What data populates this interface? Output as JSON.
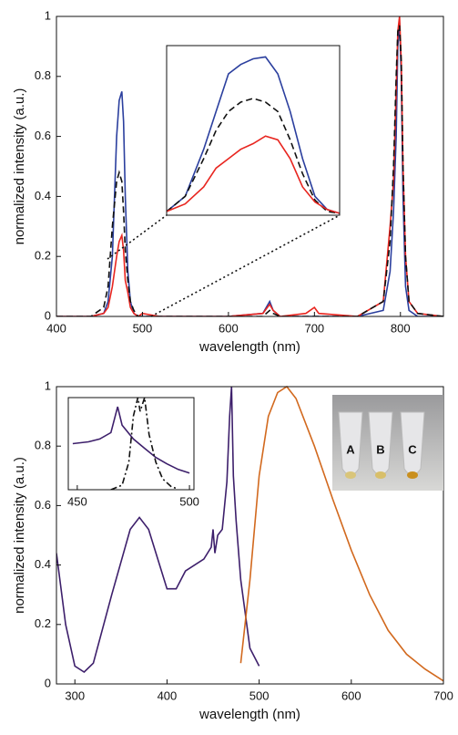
{
  "chart_data": [
    {
      "type": "line",
      "xlabel": "wavelength (nm)",
      "ylabel": "normalized intensity (a.u.)",
      "xlim": [
        400,
        850
      ],
      "ylim": [
        0,
        1
      ],
      "xticks": [
        400,
        500,
        600,
        700,
        800
      ],
      "yticks": [
        0,
        0.2,
        0.4,
        0.6,
        0.8,
        1
      ],
      "grid": false,
      "x": [
        400,
        420,
        440,
        455,
        460,
        465,
        470,
        473,
        476,
        478,
        480,
        483,
        486,
        490,
        495,
        500,
        520,
        550,
        600,
        640,
        648,
        652,
        660,
        690,
        700,
        705,
        750,
        780,
        788,
        792,
        795,
        797,
        799,
        801,
        803,
        806,
        810,
        820,
        850
      ],
      "series": [
        {
          "color": "#2b3f9e",
          "dash": "solid",
          "values": [
            0,
            0,
            0,
            0.01,
            0.05,
            0.2,
            0.6,
            0.72,
            0.75,
            0.65,
            0.4,
            0.15,
            0.05,
            0.01,
            0,
            0,
            0,
            0,
            0,
            0.01,
            0.05,
            0.02,
            0,
            0,
            0,
            0,
            0,
            0.02,
            0.15,
            0.35,
            0.6,
            0.9,
            0.98,
            0.8,
            0.4,
            0.1,
            0.02,
            0,
            0
          ]
        },
        {
          "color": "#e8251f",
          "dash": "solid",
          "values": [
            0,
            0,
            0,
            0.01,
            0.03,
            0.1,
            0.2,
            0.25,
            0.27,
            0.22,
            0.12,
            0.08,
            0.03,
            0.01,
            0,
            0.01,
            0,
            0,
            0,
            0.01,
            0.04,
            0.02,
            0,
            0.01,
            0.03,
            0.01,
            0,
            0.05,
            0.3,
            0.45,
            0.75,
            0.95,
            1.0,
            0.85,
            0.5,
            0.2,
            0.05,
            0.01,
            0
          ]
        },
        {
          "color": "#111111",
          "dash": "dash",
          "values": [
            0,
            0,
            0,
            0.03,
            0.1,
            0.3,
            0.45,
            0.48,
            0.45,
            0.35,
            0.22,
            0.12,
            0.05,
            0.02,
            0,
            0,
            0,
            0,
            0,
            0,
            0.02,
            0.01,
            0,
            0,
            0,
            0,
            0,
            0.05,
            0.25,
            0.5,
            0.8,
            0.95,
            0.97,
            0.85,
            0.5,
            0.2,
            0.05,
            0.01,
            0
          ]
        }
      ]
    },
    {
      "type": "line",
      "xlim": [
        462,
        490
      ],
      "ylim": [
        0,
        0.9
      ],
      "x": [
        462,
        465,
        468,
        470,
        472,
        474,
        476,
        478,
        480,
        482,
        484,
        486,
        488,
        490
      ],
      "series": [
        {
          "color": "#2b3f9e",
          "dash": "solid",
          "values": [
            0.02,
            0.1,
            0.35,
            0.55,
            0.75,
            0.8,
            0.83,
            0.84,
            0.75,
            0.55,
            0.3,
            0.1,
            0.03,
            0.01
          ]
        },
        {
          "color": "#111111",
          "dash": "dash",
          "values": [
            0.02,
            0.1,
            0.3,
            0.45,
            0.55,
            0.6,
            0.62,
            0.6,
            0.55,
            0.4,
            0.22,
            0.08,
            0.02,
            0.01
          ]
        },
        {
          "color": "#e8251f",
          "dash": "solid",
          "values": [
            0.02,
            0.06,
            0.15,
            0.25,
            0.3,
            0.35,
            0.38,
            0.42,
            0.4,
            0.3,
            0.15,
            0.07,
            0.03,
            0.01
          ]
        }
      ]
    },
    {
      "type": "line",
      "xlabel": "wavelength (nm)",
      "ylabel": "normalized intensity (a.u.)",
      "xlim": [
        280,
        700
      ],
      "ylim": [
        0,
        1
      ],
      "xticks": [
        300,
        400,
        500,
        600,
        700
      ],
      "yticks": [
        0,
        0.2,
        0.4,
        0.6,
        0.8,
        1
      ],
      "grid": false,
      "series": [
        {
          "color": "#3d1f6b",
          "dash": "solid",
          "x": [
            280,
            290,
            300,
            310,
            320,
            340,
            360,
            370,
            380,
            400,
            410,
            420,
            440,
            448,
            450,
            452,
            455,
            460,
            465,
            468,
            470,
            472,
            475,
            480,
            490,
            500
          ],
          "values": [
            0.44,
            0.2,
            0.06,
            0.04,
            0.07,
            0.3,
            0.52,
            0.56,
            0.52,
            0.32,
            0.32,
            0.38,
            0.42,
            0.46,
            0.52,
            0.44,
            0.5,
            0.52,
            0.68,
            0.9,
            1.0,
            0.7,
            0.55,
            0.35,
            0.12,
            0.06
          ]
        },
        {
          "color": "#d2691e",
          "dash": "solid",
          "x": [
            480,
            490,
            500,
            510,
            520,
            530,
            540,
            560,
            580,
            600,
            620,
            640,
            660,
            680,
            700
          ],
          "values": [
            0.07,
            0.35,
            0.7,
            0.9,
            0.98,
            1.0,
            0.96,
            0.8,
            0.62,
            0.45,
            0.3,
            0.18,
            0.1,
            0.05,
            0.01
          ]
        }
      ]
    },
    {
      "type": "line",
      "xlim": [
        446,
        502
      ],
      "ylim": [
        0,
        1
      ],
      "xticks": [
        450,
        500
      ],
      "series": [
        {
          "color": "#3d1f6b",
          "dash": "solid",
          "x": [
            448,
            455,
            460,
            465,
            468,
            470,
            475,
            480,
            485,
            490,
            495,
            500
          ],
          "values": [
            0.5,
            0.52,
            0.55,
            0.62,
            0.9,
            0.7,
            0.55,
            0.45,
            0.35,
            0.28,
            0.22,
            0.18
          ]
        },
        {
          "color": "#111111",
          "dash": "dashdot",
          "x": [
            465,
            470,
            473,
            475,
            477,
            478,
            480,
            482,
            485,
            488,
            492,
            495
          ],
          "values": [
            0,
            0.05,
            0.3,
            0.8,
            1.0,
            0.85,
            1.0,
            0.6,
            0.3,
            0.12,
            0.03,
            0.01
          ]
        }
      ]
    }
  ],
  "photo": {
    "labels": [
      "A",
      "B",
      "C"
    ]
  }
}
